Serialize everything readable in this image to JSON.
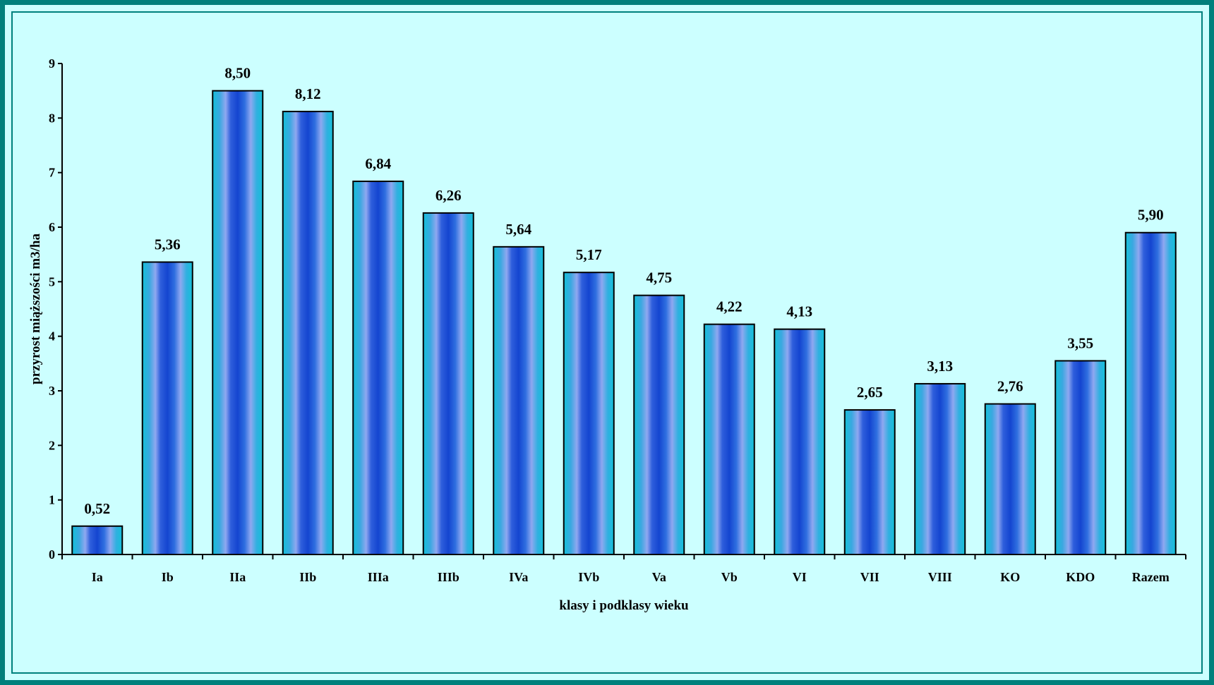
{
  "chart_data": {
    "type": "bar",
    "categories": [
      "Ia",
      "Ib",
      "IIa",
      "IIb",
      "IIIa",
      "IIIb",
      "IVa",
      "IVb",
      "Va",
      "Vb",
      "VI",
      "VII",
      "VIII",
      "KO",
      "KDO",
      "Razem"
    ],
    "values": [
      0.52,
      5.36,
      8.5,
      8.12,
      6.84,
      6.26,
      5.64,
      5.17,
      4.75,
      4.22,
      4.13,
      2.65,
      3.13,
      2.76,
      3.55,
      5.9
    ],
    "value_labels": [
      "0,52",
      "5,36",
      "8,50",
      "8,12",
      "6,84",
      "6,26",
      "5,64",
      "5,17",
      "4,75",
      "4,22",
      "4,13",
      "2,65",
      "3,13",
      "2,76",
      "3,55",
      "5,90"
    ],
    "title": "",
    "xlabel": "klasy i podklasy wieku",
    "ylabel": "przyrost miąższości m3/ha",
    "ylim": [
      0,
      9
    ],
    "yticks": [
      "0",
      "1",
      "2",
      "3",
      "4",
      "5",
      "6",
      "7",
      "8",
      "9"
    ],
    "grid": false,
    "legend": "none",
    "colors": {
      "background": "#ccffff",
      "frame": "#00807c",
      "bar_edge": "#14b4d2",
      "bar_center": "#1a4fd6",
      "bar_highlight": "#8fa8f0"
    }
  }
}
